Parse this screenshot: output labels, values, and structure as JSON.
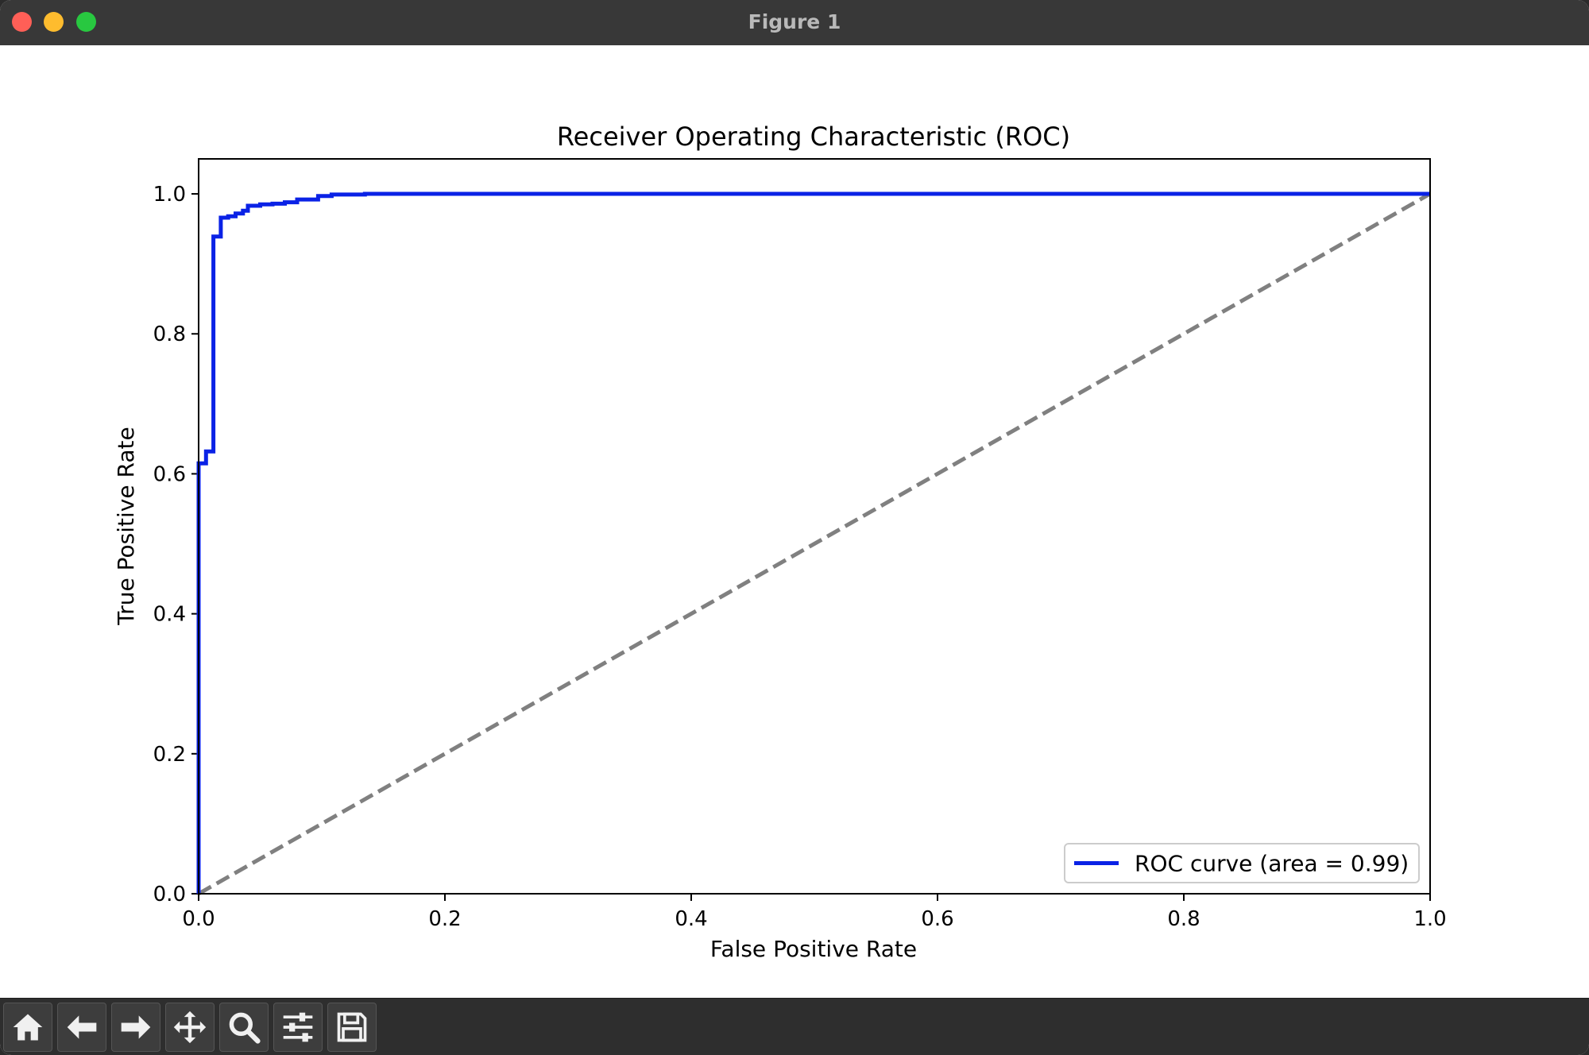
{
  "window": {
    "title": "Figure 1"
  },
  "toolbar": {
    "buttons": [
      {
        "name": "home",
        "icon": "home-icon"
      },
      {
        "name": "back",
        "icon": "arrow-left-icon"
      },
      {
        "name": "forward",
        "icon": "arrow-right-icon"
      },
      {
        "name": "pan",
        "icon": "move-icon"
      },
      {
        "name": "zoom",
        "icon": "magnifier-icon"
      },
      {
        "name": "configure-subplots",
        "icon": "sliders-icon"
      },
      {
        "name": "save",
        "icon": "floppy-disk-icon"
      }
    ]
  },
  "colors": {
    "roc": "#0a22e6",
    "diagonal": "#808080",
    "titlebar": "#383838",
    "toolbar": "#2e2e2e"
  },
  "chart_data": {
    "type": "line",
    "title": "Receiver Operating Characteristic (ROC)",
    "xlabel": "False Positive Rate",
    "ylabel": "True Positive Rate",
    "xlim": [
      0.0,
      1.0
    ],
    "ylim": [
      0.0,
      1.05
    ],
    "xticks": [
      "0.0",
      "0.2",
      "0.4",
      "0.6",
      "0.8",
      "1.0"
    ],
    "yticks": [
      "0.0",
      "0.2",
      "0.4",
      "0.6",
      "0.8",
      "1.0"
    ],
    "grid": false,
    "legend_position": "lower right",
    "series": [
      {
        "name": "ROC curve (area = 0.99)",
        "style": "solid",
        "x": [
          0.0,
          0.0,
          0.006,
          0.006,
          0.012,
          0.012,
          0.018,
          0.018,
          0.024,
          0.024,
          0.03,
          0.03,
          0.036,
          0.036,
          0.04,
          0.04,
          0.05,
          0.05,
          0.06,
          0.06,
          0.07,
          0.07,
          0.08,
          0.08,
          0.097,
          0.097,
          0.108,
          0.108,
          0.135,
          0.135,
          1.0
        ],
        "y": [
          0.0,
          0.615,
          0.615,
          0.632,
          0.632,
          0.939,
          0.939,
          0.966,
          0.966,
          0.968,
          0.968,
          0.972,
          0.972,
          0.976,
          0.976,
          0.983,
          0.983,
          0.985,
          0.985,
          0.986,
          0.986,
          0.988,
          0.988,
          0.992,
          0.992,
          0.997,
          0.997,
          0.999,
          0.999,
          1.0,
          1.0
        ]
      },
      {
        "name": "",
        "style": "dashed",
        "x": [
          0.0,
          1.0
        ],
        "y": [
          0.0,
          1.0
        ]
      }
    ]
  }
}
